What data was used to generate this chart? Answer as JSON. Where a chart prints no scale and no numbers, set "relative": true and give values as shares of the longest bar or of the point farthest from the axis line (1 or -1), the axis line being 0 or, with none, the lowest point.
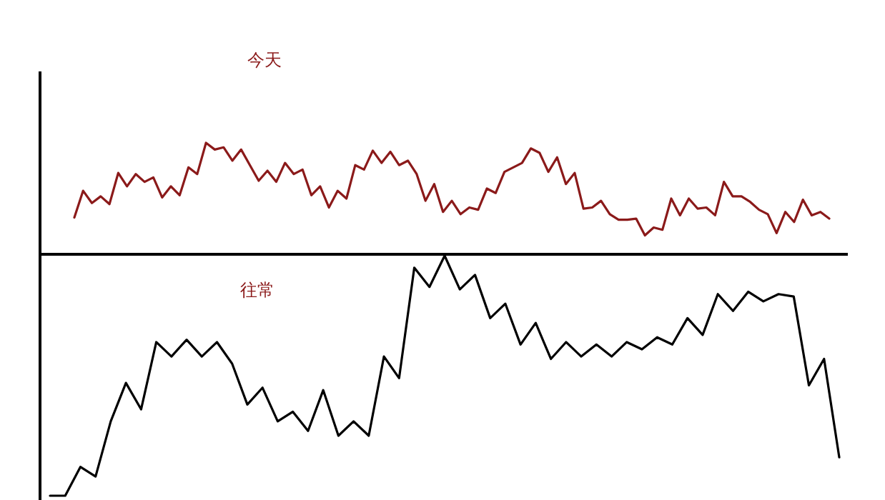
{
  "chart_data": [
    {
      "type": "line",
      "title": "今天",
      "relative": true,
      "categories": [
        null,
        null,
        null,
        null,
        null,
        null,
        null,
        null,
        null,
        null,
        null,
        null,
        null,
        null,
        null,
        null,
        null,
        null,
        null,
        null,
        null,
        null,
        null,
        null,
        null,
        null,
        null,
        null,
        null,
        null,
        null,
        null,
        null,
        null,
        null,
        null,
        null,
        null,
        null,
        null,
        null,
        null,
        null,
        null,
        null,
        null,
        null,
        null,
        null,
        null,
        null,
        null,
        null,
        null,
        null,
        null,
        null,
        null,
        null,
        null,
        null,
        null,
        null,
        null,
        null,
        null,
        null,
        null,
        null,
        null,
        null,
        null,
        null,
        null,
        null,
        null,
        null,
        null,
        null,
        null,
        null,
        null,
        null,
        null,
        null,
        null,
        null
      ],
      "series": [
        {
          "color": "#8b1a1a",
          "values": [
            0.33,
            0.57,
            0.46,
            0.52,
            0.45,
            0.73,
            0.61,
            0.72,
            0.65,
            0.69,
            0.51,
            0.61,
            0.53,
            0.78,
            0.72,
            1.0,
            0.94,
            0.96,
            0.84,
            0.94,
            0.8,
            0.66,
            0.75,
            0.65,
            0.82,
            0.72,
            0.76,
            0.53,
            0.61,
            0.42,
            0.57,
            0.5,
            0.8,
            0.76,
            0.93,
            0.82,
            0.92,
            0.8,
            0.84,
            0.72,
            0.48,
            0.63,
            0.38,
            0.48,
            0.36,
            0.42,
            0.4,
            0.59,
            0.55,
            0.74,
            0.78,
            0.82,
            0.95,
            0.91,
            0.74,
            0.87,
            0.63,
            0.73,
            0.41,
            0.42,
            0.48,
            0.36,
            0.31,
            0.31,
            0.32,
            0.17,
            0.24,
            0.22,
            0.5,
            0.35,
            0.5,
            0.41,
            0.42,
            0.35,
            0.65,
            0.52,
            0.52,
            0.47,
            0.4,
            0.36,
            0.19,
            0.38,
            0.29,
            0.49,
            0.35,
            0.38,
            0.32
          ]
        }
      ]
    },
    {
      "type": "line",
      "title": "往常",
      "relative": true,
      "categories": [
        null,
        null,
        null,
        null,
        null,
        null,
        null,
        null,
        null,
        null,
        null,
        null,
        null,
        null,
        null,
        null,
        null,
        null,
        null,
        null,
        null,
        null,
        null,
        null,
        null,
        null,
        null,
        null,
        null,
        null,
        null,
        null,
        null,
        null,
        null,
        null,
        null,
        null,
        null,
        null,
        null,
        null,
        null,
        null,
        null,
        null,
        null,
        null,
        null,
        null,
        null,
        null,
        null
      ],
      "series": [
        {
          "color": "#000000",
          "values": [
            0.0,
            0.0,
            0.12,
            0.08,
            0.31,
            0.47,
            0.36,
            0.64,
            0.58,
            0.65,
            0.58,
            0.64,
            0.55,
            0.38,
            0.45,
            0.31,
            0.35,
            0.27,
            0.44,
            0.25,
            0.31,
            0.25,
            0.58,
            0.49,
            0.95,
            0.87,
            1.0,
            0.86,
            0.92,
            0.74,
            0.8,
            0.63,
            0.72,
            0.57,
            0.64,
            0.58,
            0.63,
            0.58,
            0.64,
            0.61,
            0.66,
            0.63,
            0.74,
            0.67,
            0.84,
            0.77,
            0.85,
            0.81,
            0.84,
            0.83,
            0.46,
            0.57,
            0.16
          ]
        }
      ]
    }
  ]
}
